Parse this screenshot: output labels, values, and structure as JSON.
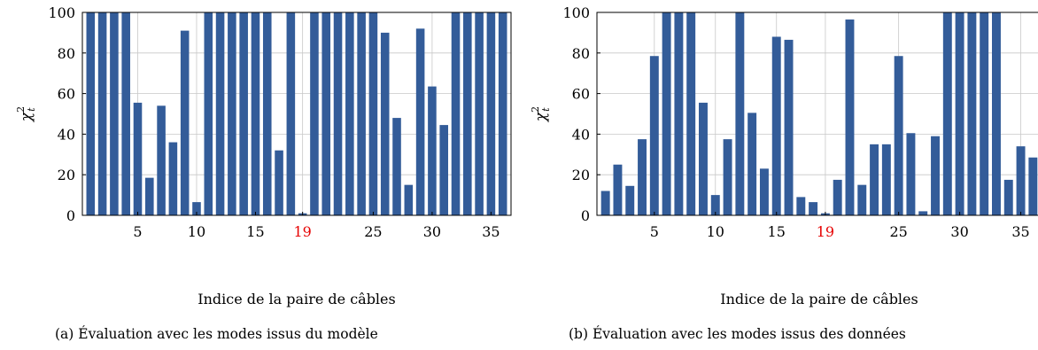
{
  "chart_data": [
    {
      "type": "bar",
      "caption": "(a)  Évaluation avec les modes issus du modèle",
      "xlabel": "Indice de la paire de câbles",
      "ylabel_base": "χ",
      "ylabel_sup": "2",
      "ylabel_sub": "t",
      "ylim": [
        0,
        100
      ],
      "xlim": [
        0.3,
        36.7
      ],
      "yticks": [
        0,
        20,
        40,
        60,
        80,
        100
      ],
      "xticks": [
        5,
        10,
        15,
        19,
        25,
        30,
        35
      ],
      "highlight_tick": 19,
      "highlight_color": "#e60000",
      "bar_color": "#335c99",
      "grid": true,
      "x": [
        1,
        2,
        3,
        4,
        5,
        6,
        7,
        8,
        9,
        10,
        11,
        12,
        13,
        14,
        15,
        16,
        17,
        18,
        19,
        20,
        21,
        22,
        23,
        24,
        25,
        26,
        27,
        28,
        29,
        30,
        31,
        32,
        33,
        34,
        35,
        36
      ],
      "values": [
        100,
        100,
        100,
        100,
        55.5,
        18.5,
        54,
        36,
        91,
        6.5,
        100,
        100,
        100,
        100,
        100,
        100,
        32,
        100,
        1,
        100,
        100,
        100,
        100,
        100,
        100,
        90,
        48,
        15,
        92,
        63.5,
        44.5,
        100,
        100,
        100,
        100,
        100
      ]
    },
    {
      "type": "bar",
      "caption": "(b) Évaluation avec les modes issus des données",
      "xlabel": "Indice de la paire de câbles",
      "ylabel_base": "χ",
      "ylabel_sup": "2",
      "ylabel_sub": "t",
      "ylim": [
        0,
        100
      ],
      "xlim": [
        0.3,
        36.7
      ],
      "yticks": [
        0,
        20,
        40,
        60,
        80,
        100
      ],
      "xticks": [
        5,
        10,
        15,
        19,
        25,
        30,
        35
      ],
      "highlight_tick": 19,
      "highlight_color": "#e60000",
      "bar_color": "#335c99",
      "grid": true,
      "x": [
        1,
        2,
        3,
        4,
        5,
        6,
        7,
        8,
        9,
        10,
        11,
        12,
        13,
        14,
        15,
        16,
        17,
        18,
        19,
        20,
        21,
        22,
        23,
        24,
        25,
        26,
        27,
        28,
        29,
        30,
        31,
        32,
        33,
        34,
        35,
        36
      ],
      "values": [
        12,
        25,
        14.5,
        37.5,
        78.5,
        100,
        100,
        100,
        55.5,
        10,
        37.5,
        100,
        50.5,
        23,
        88,
        86.5,
        9,
        6.5,
        1,
        17.5,
        96.5,
        15,
        35,
        35,
        78.5,
        40.5,
        2,
        39,
        100,
        100,
        100,
        100,
        100,
        17.5,
        34,
        28.5
      ]
    }
  ]
}
